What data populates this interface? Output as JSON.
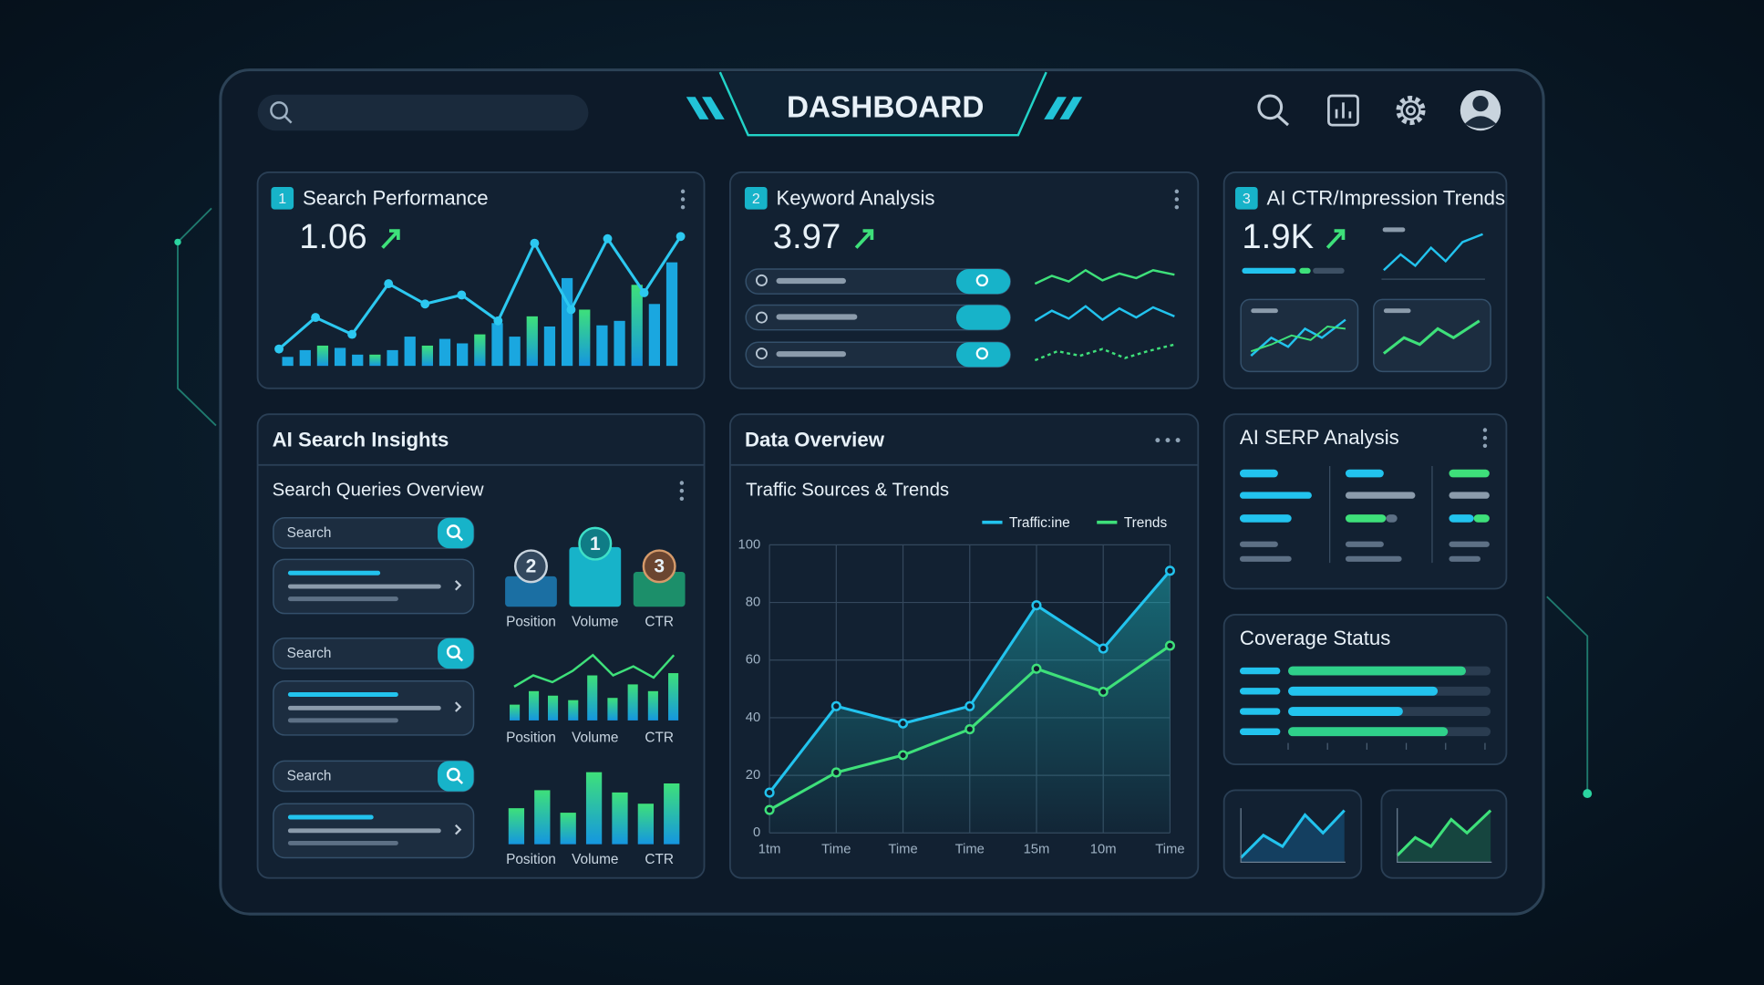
{
  "header": {
    "title": "DASHBOARD"
  },
  "panels": {
    "search_performance": {
      "badge": "1",
      "title": "Search Performance",
      "value": "1.06"
    },
    "keyword_analysis": {
      "badge": "2",
      "title": "Keyword Analysis",
      "value": "3.97"
    },
    "ctr_trends": {
      "badge": "3",
      "title": "AI CTR/Impression Trends",
      "value": "1.9K"
    },
    "insights": {
      "title": "AI Search Insights",
      "subtitle": "Search Queries Overview",
      "searches": [
        "Search",
        "Search",
        "Search"
      ],
      "ranks": [
        "2",
        "1",
        "3"
      ],
      "groups": [
        [
          "Position",
          "Volume",
          "CTR"
        ],
        [
          "Position",
          "Volume",
          "CTR"
        ],
        [
          "Position",
          "Volume",
          "CTR"
        ]
      ]
    },
    "data_overview": {
      "title": "Data Overview"
    },
    "serp": {
      "title": "AI SERP Analysis"
    },
    "coverage": {
      "title": "Coverage Status"
    }
  },
  "chart_data": [
    {
      "type": "line",
      "title": "Traffic Sources & Trends",
      "categories": [
        "1tm",
        "Time",
        "Time",
        "Time",
        "15m",
        "10m",
        "Time"
      ],
      "series": [
        {
          "name": "Traffic:ine",
          "color": "#22c3ee",
          "values": [
            14,
            44,
            38,
            44,
            79,
            64,
            91
          ]
        },
        {
          "name": "Trends",
          "color": "#3ee07a",
          "values": [
            8,
            21,
            27,
            36,
            57,
            49,
            65
          ]
        }
      ],
      "ylim": [
        0,
        100
      ],
      "yticks": [
        0,
        20,
        40,
        60,
        80,
        100
      ],
      "grid": true
    },
    {
      "type": "bar",
      "color": "#1aa7e0",
      "values": [
        8,
        14,
        18,
        16,
        10,
        10,
        14,
        26,
        18,
        24,
        20,
        28,
        38,
        26,
        44,
        35,
        78,
        50,
        36,
        40,
        72,
        55,
        92
      ],
      "line": {
        "color": "#2cc8f0",
        "values": [
          15,
          43,
          28,
          73,
          55,
          63,
          40,
          109,
          50,
          113,
          65,
          115
        ]
      }
    }
  ]
}
